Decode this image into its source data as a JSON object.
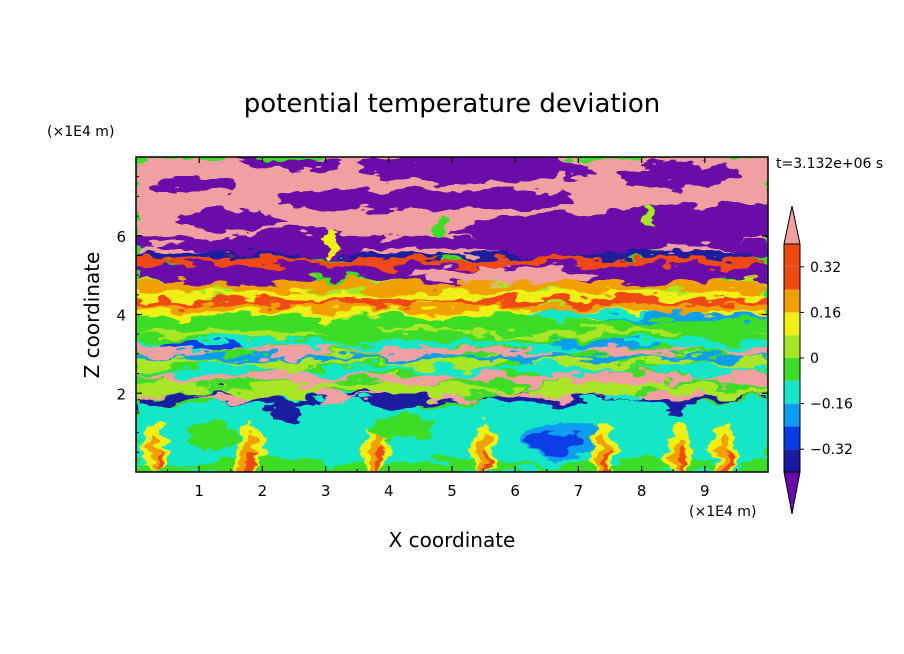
{
  "chart_data": {
    "type": "heatmap",
    "title": "potential temperature deviation",
    "xlabel": "X coordinate",
    "ylabel": "Z coordinate",
    "x_unit": "(×1E4 m)",
    "y_unit": "(×1E4 m)",
    "time_label": "t=3.132e+06 s",
    "xlim": [
      0,
      10
    ],
    "ylim": [
      0,
      8
    ],
    "x_ticks": [
      1,
      2,
      3,
      4,
      5,
      6,
      7,
      8,
      9
    ],
    "y_ticks": [
      2,
      4,
      6
    ],
    "colorbar": {
      "levels": [
        -0.4,
        -0.32,
        -0.24,
        -0.16,
        -0.08,
        0,
        0.08,
        0.16,
        0.24,
        0.32,
        0.4
      ],
      "labels": [
        "0.32",
        "0.16",
        "0",
        "-0.16",
        "-0.32"
      ],
      "label_values": [
        0.32,
        0.16,
        0,
        -0.16,
        -0.32
      ],
      "colors": [
        "#6a0aa8",
        "#1a1aa0",
        "#0a3ce6",
        "#0a9ef0",
        "#19e6c8",
        "#3cdc28",
        "#a8e628",
        "#f0f014",
        "#f0a000",
        "#f04a14",
        "#f0a0a0"
      ],
      "extend": "both"
    },
    "bands": [
      {
        "z_range": [
          7.0,
          8.0
        ],
        "dominant": "above 0.4 (pink) with level below -0.4 (purple) patches"
      },
      {
        "z_range": [
          5.0,
          7.0
        ],
        "dominant": "alternating below -0.4 (purple) and above 0.4 (pink)"
      },
      {
        "z_range": [
          3.5,
          5.0
        ],
        "dominant": "0.16 to 0.32 (yellow/orange/red)"
      },
      {
        "z_range": [
          1.8,
          3.5
        ],
        "dominant": "-0.08 to 0.16 (green/cyan) with pink streaks"
      },
      {
        "z_range": [
          0.0,
          1.8
        ],
        "dominant": "-0.16 to 0.08 (cyan/green) with blue cells and red plumes"
      }
    ]
  }
}
